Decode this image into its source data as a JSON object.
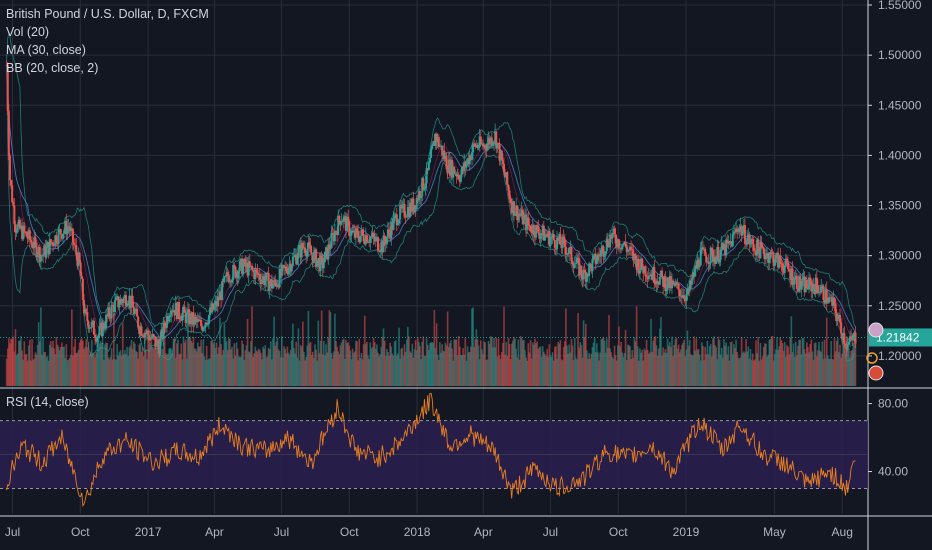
{
  "legend": {
    "symbol": "British Pound / U.S. Dollar, D, FXCM",
    "vol": "Vol (20)",
    "ma": "MA (30, close)",
    "bb": "BB (20, close, 2)",
    "rsi": "RSI (14, close)"
  },
  "colors": {
    "background": "#131722",
    "grid": "#2a2e39",
    "up": "#26a69a",
    "down": "#ef5350",
    "bb_band": "#26a69a",
    "ma": "#4b8ad6",
    "rsi_line": "#e67e22",
    "rsi_band": "#2a1f4f",
    "last_price_tag": "#26a69a"
  },
  "chart_data": [
    {
      "type": "line",
      "title": "British Pound / U.S. Dollar, D, FXCM",
      "series_kind": "candlestick-approximation",
      "ylim": [
        1.17,
        1.555
      ],
      "y_ticks": [
        "1.55000",
        "1.50000",
        "1.45000",
        "1.40000",
        "1.35000",
        "1.30000",
        "1.25000",
        "1.20000"
      ],
      "y_tick_values": [
        1.55,
        1.5,
        1.45,
        1.4,
        1.35,
        1.3,
        1.25,
        1.2
      ],
      "x_ticks": [
        "Jul",
        "Oct",
        "2017",
        "Apr",
        "Jul",
        "Oct",
        "2018",
        "Apr",
        "Jul",
        "Oct",
        "2019",
        "May",
        "Aug"
      ],
      "last_price": "1.21842",
      "last_price_value": 1.21842,
      "x": [
        "2016-06-23",
        "2016-06-27",
        "2016-07-05",
        "2016-07-20",
        "2016-08-10",
        "2016-08-30",
        "2016-09-15",
        "2016-09-30",
        "2016-10-07",
        "2016-10-25",
        "2016-11-15",
        "2016-12-05",
        "2016-12-20",
        "2017-01-16",
        "2017-01-31",
        "2017-02-20",
        "2017-03-14",
        "2017-04-03",
        "2017-04-19",
        "2017-05-10",
        "2017-06-01",
        "2017-06-20",
        "2017-07-10",
        "2017-08-01",
        "2017-08-25",
        "2017-09-20",
        "2017-10-06",
        "2017-10-25",
        "2017-11-15",
        "2017-12-05",
        "2017-12-27",
        "2018-01-15",
        "2018-01-26",
        "2018-02-12",
        "2018-03-01",
        "2018-03-20",
        "2018-04-02",
        "2018-04-17",
        "2018-05-10",
        "2018-06-01",
        "2018-06-25",
        "2018-07-20",
        "2018-08-15",
        "2018-09-05",
        "2018-09-21",
        "2018-10-10",
        "2018-10-30",
        "2018-11-20",
        "2018-12-12",
        "2019-01-03",
        "2019-01-20",
        "2019-02-10",
        "2019-03-01",
        "2019-03-13",
        "2019-04-01",
        "2019-04-25",
        "2019-05-15",
        "2019-06-05",
        "2019-06-28",
        "2019-07-20",
        "2019-08-08",
        "2019-08-20"
      ],
      "values": [
        1.49,
        1.38,
        1.33,
        1.32,
        1.3,
        1.32,
        1.33,
        1.29,
        1.24,
        1.22,
        1.25,
        1.26,
        1.23,
        1.21,
        1.25,
        1.24,
        1.23,
        1.25,
        1.28,
        1.29,
        1.28,
        1.27,
        1.29,
        1.31,
        1.29,
        1.34,
        1.32,
        1.32,
        1.31,
        1.34,
        1.35,
        1.38,
        1.42,
        1.39,
        1.38,
        1.41,
        1.41,
        1.42,
        1.35,
        1.33,
        1.32,
        1.31,
        1.28,
        1.3,
        1.32,
        1.31,
        1.29,
        1.28,
        1.27,
        1.26,
        1.3,
        1.3,
        1.31,
        1.33,
        1.31,
        1.3,
        1.29,
        1.27,
        1.27,
        1.25,
        1.21,
        1.22
      ],
      "volume_note": "volume histogram rendered at bottom of price pane"
    },
    {
      "type": "line",
      "title": "RSI (14, close)",
      "ylim": [
        15,
        88
      ],
      "y_ticks": [
        "80.00",
        "40.00"
      ],
      "y_tick_values": [
        80,
        40
      ],
      "band": [
        30,
        70
      ],
      "x": [
        "2016-06-23",
        "2016-07-15",
        "2016-08-10",
        "2016-09-05",
        "2016-10-07",
        "2016-11-01",
        "2016-12-01",
        "2017-01-10",
        "2017-02-10",
        "2017-03-10",
        "2017-04-10",
        "2017-05-10",
        "2017-06-10",
        "2017-07-10",
        "2017-08-10",
        "2017-09-15",
        "2017-10-10",
        "2017-11-10",
        "2017-12-10",
        "2018-01-20",
        "2018-02-15",
        "2018-03-15",
        "2018-04-15",
        "2018-05-10",
        "2018-06-10",
        "2018-07-10",
        "2018-08-15",
        "2018-09-15",
        "2018-10-15",
        "2018-11-15",
        "2018-12-15",
        "2019-01-20",
        "2019-02-20",
        "2019-03-15",
        "2019-04-15",
        "2019-05-15",
        "2019-06-15",
        "2019-07-15",
        "2019-08-08",
        "2019-08-20"
      ],
      "values": [
        34,
        55,
        45,
        60,
        22,
        50,
        58,
        45,
        52,
        48,
        68,
        55,
        52,
        60,
        45,
        78,
        52,
        48,
        58,
        82,
        55,
        62,
        52,
        28,
        42,
        30,
        36,
        52,
        48,
        55,
        40,
        70,
        52,
        68,
        50,
        45,
        32,
        40,
        30,
        52
      ]
    }
  ]
}
